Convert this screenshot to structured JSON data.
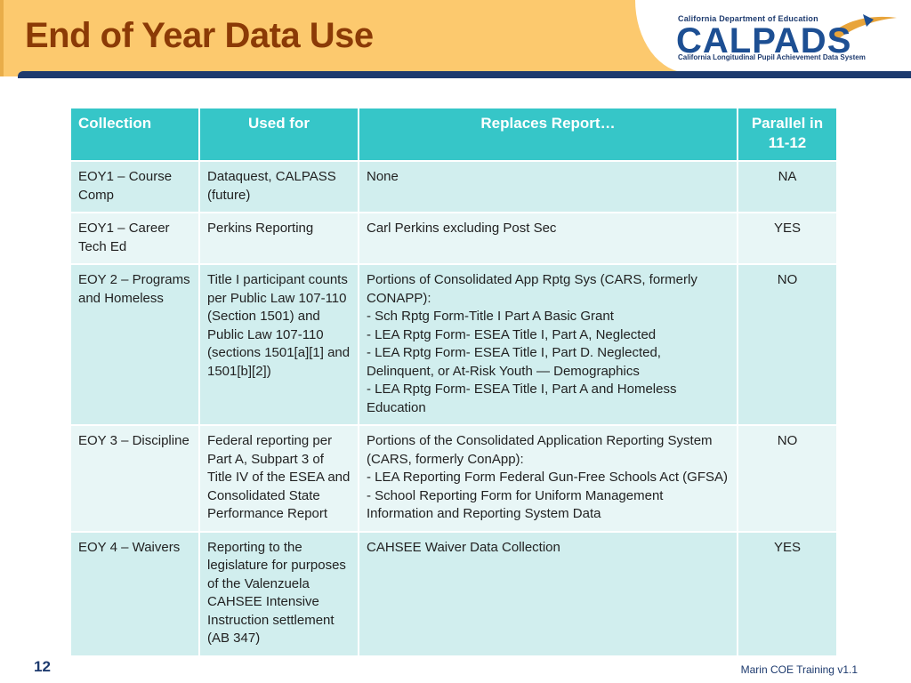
{
  "slide": {
    "title": "End of Year Data Use",
    "page_number": "12",
    "footer": "Marin COE Training v1.1"
  },
  "logo": {
    "top_text": "California Department of Education",
    "name": "CALPADS",
    "subtitle": "California Longitudinal Pupil Achievement Data System"
  },
  "table": {
    "headers": [
      "Collection",
      "Used for",
      "Replaces Report…",
      "Parallel in 11-12"
    ],
    "rows": [
      {
        "collection": "EOY1 – Course Comp",
        "used_for": "Dataquest, CALPASS (future)",
        "replaces": [
          "None"
        ],
        "parallel": "NA"
      },
      {
        "collection": "EOY1 – Career Tech Ed",
        "used_for": "Perkins Reporting",
        "replaces": [
          "Carl Perkins excluding Post Sec"
        ],
        "parallel": "YES"
      },
      {
        "collection": "EOY 2 – Programs and Homeless",
        "used_for": "Title I participant counts per Public Law 107-110 (Section 1501) and Public Law 107-110 (sections 1501[a][1] and 1501[b][2])",
        "replaces": [
          "Portions of Consolidated App Rptg Sys (CARS, formerly CONAPP):",
          "- Sch Rptg Form-Title I Part A Basic Grant",
          "- LEA Rptg Form- ESEA Title I, Part A, Neglected",
          "- LEA Rptg Form- ESEA Title I, Part D. Neglected, Delinquent, or  At-Risk Youth — Demographics",
          "- LEA Rptg Form- ESEA Title I, Part A and Homeless Education"
        ],
        "parallel": "NO"
      },
      {
        "collection": "EOY 3 – Discipline",
        "used_for": "Federal reporting per Part A, Subpart 3 of Title IV of the ESEA and Consolidated State Performance Report",
        "replaces": [
          "Portions of the Consolidated Application Reporting System (CARS, formerly ConApp):",
          "- LEA Reporting Form Federal Gun-Free Schools Act (GFSA)",
          "- School Reporting Form for Uniform Management Information and Reporting System Data"
        ],
        "parallel": "NO"
      },
      {
        "collection": "EOY 4 – Waivers",
        "used_for": "Reporting to the legislature for purposes of the Valenzuela CAHSEE Intensive Instruction settlement (AB 347)",
        "replaces": [
          "CAHSEE Waiver Data Collection"
        ],
        "parallel": "YES"
      }
    ]
  }
}
